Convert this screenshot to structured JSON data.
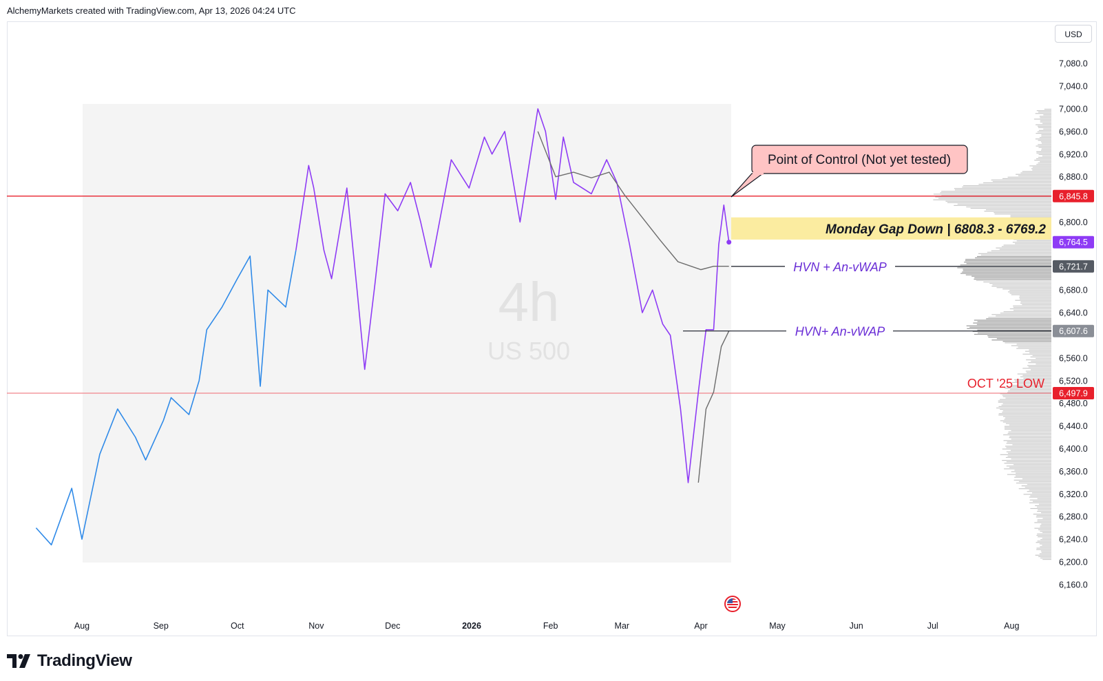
{
  "header": {
    "attribution": "AlchemyMarkets created with TradingView.com, Apr 13, 2026 04:24 UTC"
  },
  "currency": "USD",
  "watermark": {
    "interval": "4h",
    "symbol": "US 500"
  },
  "footer": {
    "brand": "TradingView",
    "logo_icon": "tradingview-logo-icon"
  },
  "colors": {
    "price_early": "#2f8ae8",
    "price_late": "#8e3bf5",
    "vwap": "#6b6b6b",
    "poc_line": "#e8202c",
    "oct_low_line": "#f0838a",
    "gap_zone": "#fbeca0",
    "callout_fill": "#ffc4c4",
    "annot_text": "#6a2ed6",
    "oct_low_text": "#e8202c"
  },
  "chart_data": {
    "type": "line",
    "instrument": "US 500",
    "interval": "4h",
    "currency": "USD",
    "x_axis": {
      "tick_labels": [
        "Aug",
        "Sep",
        "Oct",
        "Nov",
        "Dec",
        "2026",
        "Feb",
        "Mar",
        "Apr",
        "May",
        "Jun",
        "Jul",
        "Aug"
      ]
    },
    "y_axis": {
      "range": [
        6130,
        7120
      ],
      "tick_labels": [
        "7,080.0",
        "7,040.0",
        "7,000.0",
        "6,960.0",
        "6,920.0",
        "6,880.0",
        "6,800.0",
        "6,680.0",
        "6,640.0",
        "6,560.0",
        "6,520.0",
        "6,480.0",
        "6,440.0",
        "6,400.0",
        "6,360.0",
        "6,320.0",
        "6,280.0",
        "6,240.0",
        "6,200.0",
        "6,160.0"
      ]
    },
    "series": [
      {
        "role": "price",
        "points": [
          [
            "2025-07-14",
            6260
          ],
          [
            "2025-07-20",
            6230
          ],
          [
            "2025-07-28",
            6330
          ],
          [
            "2025-08-01",
            6240
          ],
          [
            "2025-08-08",
            6390
          ],
          [
            "2025-08-15",
            6470
          ],
          [
            "2025-08-22",
            6420
          ],
          [
            "2025-08-26",
            6380
          ],
          [
            "2025-09-02",
            6450
          ],
          [
            "2025-09-05",
            6490
          ],
          [
            "2025-09-12",
            6460
          ],
          [
            "2025-09-16",
            6520
          ],
          [
            "2025-09-19",
            6610
          ],
          [
            "2025-09-25",
            6650
          ],
          [
            "2025-10-01",
            6700
          ],
          [
            "2025-10-06",
            6740
          ],
          [
            "2025-10-10",
            6510
          ],
          [
            "2025-10-13",
            6680
          ],
          [
            "2025-10-20",
            6650
          ],
          [
            "2025-10-24",
            6750
          ],
          [
            "2025-10-29",
            6900
          ],
          [
            "2025-10-31",
            6860
          ],
          [
            "2025-11-04",
            6750
          ],
          [
            "2025-11-07",
            6700
          ],
          [
            "2025-11-13",
            6860
          ],
          [
            "2025-11-17",
            6680
          ],
          [
            "2025-11-20",
            6540
          ],
          [
            "2025-11-24",
            6690
          ],
          [
            "2025-11-28",
            6850
          ],
          [
            "2025-12-03",
            6820
          ],
          [
            "2025-12-08",
            6870
          ],
          [
            "2025-12-12",
            6800
          ],
          [
            "2025-12-16",
            6720
          ],
          [
            "2025-12-24",
            6910
          ],
          [
            "2025-12-31",
            6860
          ],
          [
            "2026-01-06",
            6950
          ],
          [
            "2026-01-09",
            6920
          ],
          [
            "2026-01-14",
            6960
          ],
          [
            "2026-01-20",
            6800
          ],
          [
            "2026-01-27",
            7000
          ],
          [
            "2026-01-30",
            6960
          ],
          [
            "2026-02-03",
            6840
          ],
          [
            "2026-02-06",
            6950
          ],
          [
            "2026-02-10",
            6870
          ],
          [
            "2026-02-17",
            6850
          ],
          [
            "2026-02-23",
            6910
          ],
          [
            "2026-02-27",
            6870
          ],
          [
            "2026-03-04",
            6760
          ],
          [
            "2026-03-09",
            6640
          ],
          [
            "2026-03-13",
            6680
          ],
          [
            "2026-03-17",
            6620
          ],
          [
            "2026-03-20",
            6600
          ],
          [
            "2026-03-24",
            6470
          ],
          [
            "2026-03-27",
            6340
          ],
          [
            "2026-03-31",
            6500
          ],
          [
            "2026-04-03",
            6610
          ],
          [
            "2026-04-06",
            6610
          ],
          [
            "2026-04-08",
            6760
          ],
          [
            "2026-04-10",
            6830
          ],
          [
            "2026-04-12",
            6764.5
          ]
        ]
      },
      {
        "role": "anchored-vwap",
        "points": [
          [
            "2026-01-27",
            6960
          ],
          [
            "2026-02-03",
            6880
          ],
          [
            "2026-02-10",
            6888
          ],
          [
            "2026-02-17",
            6878
          ],
          [
            "2026-02-24",
            6888
          ],
          [
            "2026-03-02",
            6848
          ],
          [
            "2026-03-09",
            6808
          ],
          [
            "2026-03-16",
            6768
          ],
          [
            "2026-03-23",
            6730
          ],
          [
            "2026-04-01",
            6716
          ],
          [
            "2026-04-06",
            6722
          ],
          [
            "2026-04-12",
            6722
          ]
        ]
      },
      {
        "role": "anchored-vwap",
        "points": [
          [
            "2026-03-31",
            6340
          ],
          [
            "2026-04-03",
            6470
          ],
          [
            "2026-04-06",
            6500
          ],
          [
            "2026-04-09",
            6580
          ],
          [
            "2026-04-12",
            6607.6
          ]
        ]
      }
    ],
    "price_labels": [
      {
        "label": "6,845.8",
        "value": 6845.8,
        "color": "#e8202c"
      },
      {
        "label": "6,764.5",
        "value": 6764.5,
        "color": "#8e3bf5"
      },
      {
        "label": "6,721.7",
        "value": 6721.7,
        "color": "#555a63"
      },
      {
        "label": "6,607.6",
        "value": 6607.6,
        "color": "#8a8e96"
      },
      {
        "label": "6,497.9",
        "value": 6497.9,
        "color": "#e8202c"
      }
    ],
    "annotations": {
      "poc_callout": "Point of Control (Not yet tested)",
      "gap_label": "Monday Gap Down | 6808.3 - 6769.2",
      "gap_range": [
        6769.2,
        6808.3
      ],
      "hvn_upper": "HVN + An-vWAP",
      "hvn_lower": "HVN+ An-vWAP",
      "oct_low": "OCT '25 LOW"
    },
    "volume_profile": {
      "price_range": [
        6200,
        7000
      ],
      "poc_price": 6845.8,
      "peak_prices": [
        6845.8,
        6720,
        6620
      ],
      "high_volume_zones": [
        [
          6700,
          6740
        ],
        [
          6590,
          6630
        ]
      ]
    },
    "grid": false,
    "legend": "none"
  }
}
